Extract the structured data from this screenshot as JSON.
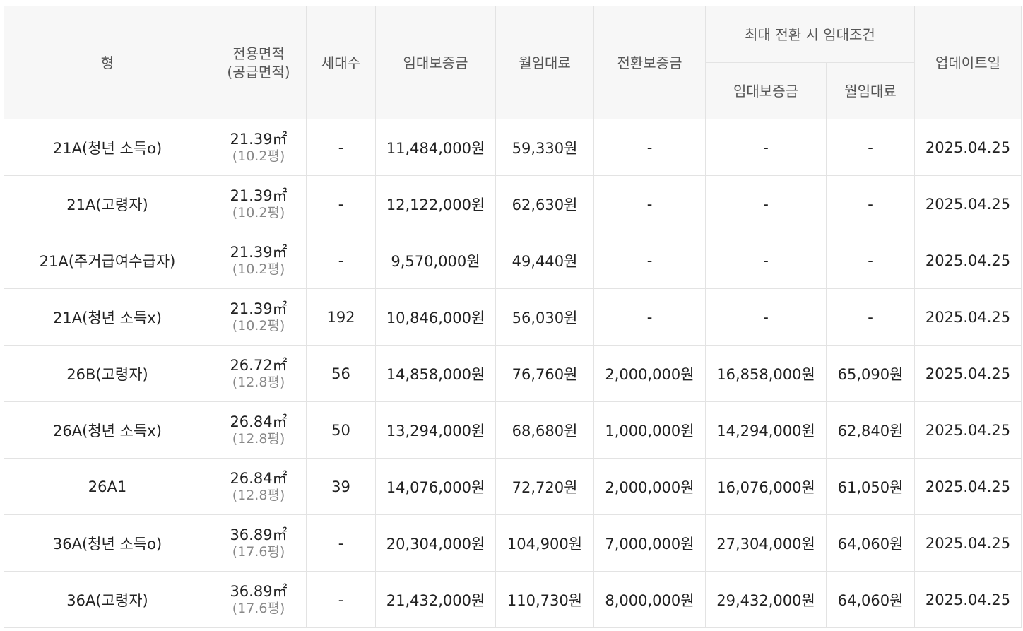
{
  "header": {
    "type": "형",
    "area_line1": "전용면적",
    "area_line2": "(공급면적)",
    "households": "세대수",
    "deposit": "임대보증금",
    "monthly_rent": "월임대료",
    "conversion_deposit": "전환보증금",
    "max_conversion_group": "최대 전환 시 임대조건",
    "max_deposit": "임대보증금",
    "max_monthly_rent": "월임대료",
    "updated": "업데이트일"
  },
  "rows": [
    {
      "type": "21A(청년 소득o)",
      "area": "21.39㎡",
      "supply": "(10.2평)",
      "households": "-",
      "deposit": "11,484,000원",
      "rent": "59,330원",
      "conversion": "-",
      "max_deposit": "-",
      "max_rent": "-",
      "updated": "2025.04.25"
    },
    {
      "type": "21A(고령자)",
      "area": "21.39㎡",
      "supply": "(10.2평)",
      "households": "-",
      "deposit": "12,122,000원",
      "rent": "62,630원",
      "conversion": "-",
      "max_deposit": "-",
      "max_rent": "-",
      "updated": "2025.04.25"
    },
    {
      "type": "21A(주거급여수급자)",
      "area": "21.39㎡",
      "supply": "(10.2평)",
      "households": "-",
      "deposit": "9,570,000원",
      "rent": "49,440원",
      "conversion": "-",
      "max_deposit": "-",
      "max_rent": "-",
      "updated": "2025.04.25"
    },
    {
      "type": "21A(청년 소득x)",
      "area": "21.39㎡",
      "supply": "(10.2평)",
      "households": "192",
      "deposit": "10,846,000원",
      "rent": "56,030원",
      "conversion": "-",
      "max_deposit": "-",
      "max_rent": "-",
      "updated": "2025.04.25"
    },
    {
      "type": "26B(고령자)",
      "area": "26.72㎡",
      "supply": "(12.8평)",
      "households": "56",
      "deposit": "14,858,000원",
      "rent": "76,760원",
      "conversion": "2,000,000원",
      "max_deposit": "16,858,000원",
      "max_rent": "65,090원",
      "updated": "2025.04.25"
    },
    {
      "type": "26A(청년 소득x)",
      "area": "26.84㎡",
      "supply": "(12.8평)",
      "households": "50",
      "deposit": "13,294,000원",
      "rent": "68,680원",
      "conversion": "1,000,000원",
      "max_deposit": "14,294,000원",
      "max_rent": "62,840원",
      "updated": "2025.04.25"
    },
    {
      "type": "26A1",
      "area": "26.84㎡",
      "supply": "(12.8평)",
      "households": "39",
      "deposit": "14,076,000원",
      "rent": "72,720원",
      "conversion": "2,000,000원",
      "max_deposit": "16,076,000원",
      "max_rent": "61,050원",
      "updated": "2025.04.25"
    },
    {
      "type": "36A(청년 소득o)",
      "area": "36.89㎡",
      "supply": "(17.6평)",
      "households": "-",
      "deposit": "20,304,000원",
      "rent": "104,900원",
      "conversion": "7,000,000원",
      "max_deposit": "27,304,000원",
      "max_rent": "64,060원",
      "updated": "2025.04.25"
    },
    {
      "type": "36A(고령자)",
      "area": "36.89㎡",
      "supply": "(17.6평)",
      "households": "-",
      "deposit": "21,432,000원",
      "rent": "110,730원",
      "conversion": "8,000,000원",
      "max_deposit": "29,432,000원",
      "max_rent": "64,060원",
      "updated": "2025.04.25"
    }
  ]
}
